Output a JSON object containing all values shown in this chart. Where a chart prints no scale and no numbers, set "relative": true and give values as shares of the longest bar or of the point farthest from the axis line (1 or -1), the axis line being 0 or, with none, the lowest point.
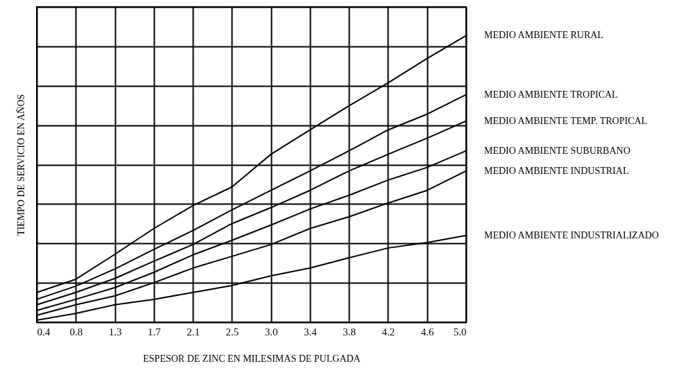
{
  "chart_data": {
    "type": "line",
    "relative": true,
    "grid": true,
    "marker": "none",
    "line_style": "solid",
    "xlabel": "ESPESOR DE ZINC EN MILESIMAS DE PULGADA",
    "ylabel": "TIEMPO DE SERVICIO EN AÑOS",
    "categories": [
      "0.4",
      "0.8",
      "1.3",
      "1.7",
      "2.1",
      "2.5",
      "3.0",
      "3.4",
      "3.8",
      "4.2",
      "4.6",
      "5.0"
    ],
    "series": [
      {
        "name": "MEDIO AMBIENTE RURAL",
        "color": "#000000",
        "values": [
          0.104,
          0.15,
          0.237,
          0.327,
          0.407,
          0.472,
          0.586,
          0.671,
          0.755,
          0.835,
          0.92,
          1
        ]
      },
      {
        "name": "MEDIO AMBIENTE TROPICAL",
        "color": "#000000",
        "values": [
          0.08,
          0.126,
          0.186,
          0.254,
          0.32,
          0.392,
          0.46,
          0.528,
          0.598,
          0.671,
          0.726,
          0.794
        ]
      },
      {
        "name": "MEDIO AMBIENTE TEMP. TROPICAL",
        "color": "#000000",
        "values": [
          0.061,
          0.104,
          0.153,
          0.213,
          0.271,
          0.344,
          0.4,
          0.46,
          0.528,
          0.586,
          0.642,
          0.702
        ]
      },
      {
        "name": "MEDIO AMBIENTE SUBURBANO",
        "color": "#000000",
        "values": [
          0.041,
          0.08,
          0.121,
          0.174,
          0.235,
          0.286,
          0.339,
          0.395,
          0.443,
          0.496,
          0.54,
          0.598
        ]
      },
      {
        "name": "MEDIO AMBIENTE INDUSTRIAL",
        "color": "#000000",
        "values": [
          0.024,
          0.061,
          0.092,
          0.138,
          0.189,
          0.23,
          0.271,
          0.327,
          0.368,
          0.416,
          0.46,
          0.528
        ]
      },
      {
        "name": "MEDIO AMBIENTE INDUSTRIALIZADO",
        "color": "#000000",
        "values": [
          0.007,
          0.031,
          0.061,
          0.08,
          0.104,
          0.128,
          0.162,
          0.189,
          0.225,
          0.259,
          0.278,
          0.303
        ]
      }
    ]
  }
}
